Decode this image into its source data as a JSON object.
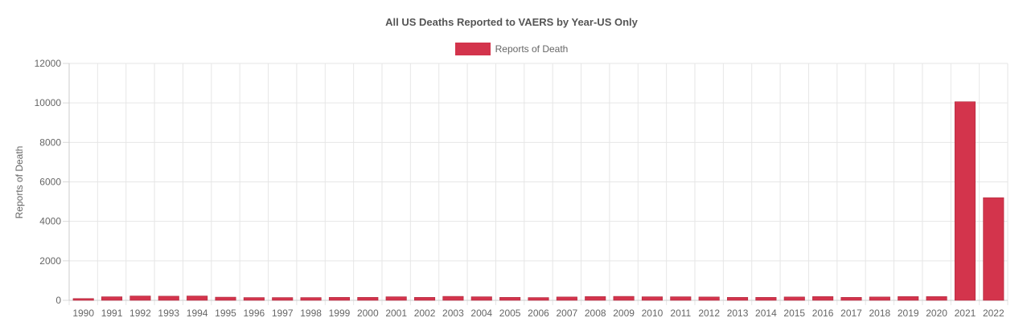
{
  "chart_data": {
    "type": "bar",
    "title": "All US Deaths Reported to VAERS by Year-US Only",
    "xlabel": "",
    "ylabel": "Reports of Death",
    "ylim": [
      0,
      12000
    ],
    "yticks": [
      0,
      2000,
      4000,
      6000,
      8000,
      10000,
      12000
    ],
    "grid": true,
    "legend_position": "top-center",
    "categories": [
      "1990",
      "1991",
      "1992",
      "1993",
      "1994",
      "1995",
      "1996",
      "1997",
      "1998",
      "1999",
      "2000",
      "2001",
      "2002",
      "2003",
      "2004",
      "2005",
      "2006",
      "2007",
      "2008",
      "2009",
      "2010",
      "2011",
      "2012",
      "2013",
      "2014",
      "2015",
      "2016",
      "2017",
      "2018",
      "2019",
      "2020",
      "2021",
      "2022"
    ],
    "series": [
      {
        "name": "Reports of Death",
        "color": "#d3344c",
        "values": [
          90,
          180,
          220,
          210,
          220,
          160,
          140,
          140,
          140,
          150,
          150,
          180,
          150,
          200,
          180,
          150,
          140,
          170,
          190,
          200,
          180,
          180,
          170,
          150,
          150,
          170,
          190,
          150,
          170,
          190,
          190,
          10060,
          5200
        ]
      }
    ]
  }
}
